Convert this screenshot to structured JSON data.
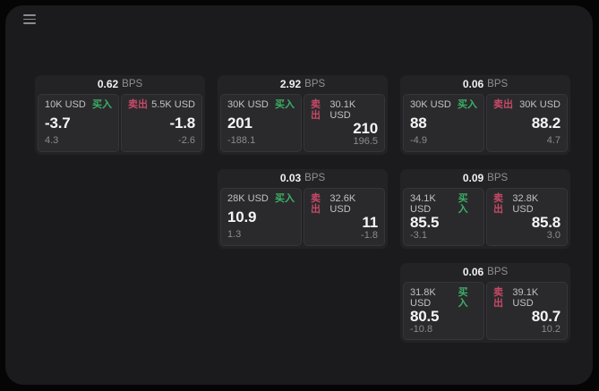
{
  "app": {
    "menu_icon": "hamburger"
  },
  "labels": {
    "buy": "买入",
    "sell": "卖出",
    "bps_suffix": "BPS"
  },
  "colors": {
    "buy_green": "#3cb065",
    "sell_red": "#c64a66",
    "window_bg": "#1b1b1d",
    "card_bg": "#232326",
    "panel_bg": "#2a2a2d"
  },
  "cards": [
    {
      "bps": "0.62",
      "buy": {
        "amount": "10K USD",
        "value": "-3.7",
        "sub": "4.3"
      },
      "sell": {
        "amount": "5.5K USD",
        "value": "-1.8",
        "sub": "-2.6"
      }
    },
    {
      "bps": "2.92",
      "buy": {
        "amount": "30K USD",
        "value": "201",
        "sub": "-188.1"
      },
      "sell": {
        "amount": "30.1K USD",
        "value": "210",
        "sub": "196.5"
      }
    },
    {
      "bps": "0.06",
      "buy": {
        "amount": "30K USD",
        "value": "88",
        "sub": "-4.9"
      },
      "sell": {
        "amount": "30K USD",
        "value": "88.2",
        "sub": "4.7"
      }
    },
    {
      "bps": "0.03",
      "buy": {
        "amount": "28K USD",
        "value": "10.9",
        "sub": "1.3"
      },
      "sell": {
        "amount": "32.6K USD",
        "value": "11",
        "sub": "-1.8"
      }
    },
    {
      "bps": "0.09",
      "buy": {
        "amount": "34.1K USD",
        "value": "85.5",
        "sub": "-3.1"
      },
      "sell": {
        "amount": "32.8K USD",
        "value": "85.8",
        "sub": "3.0"
      }
    },
    {
      "bps": "0.06",
      "buy": {
        "amount": "31.8K USD",
        "value": "80.5",
        "sub": "-10.8"
      },
      "sell": {
        "amount": "39.1K USD",
        "value": "80.7",
        "sub": "10.2"
      }
    }
  ]
}
